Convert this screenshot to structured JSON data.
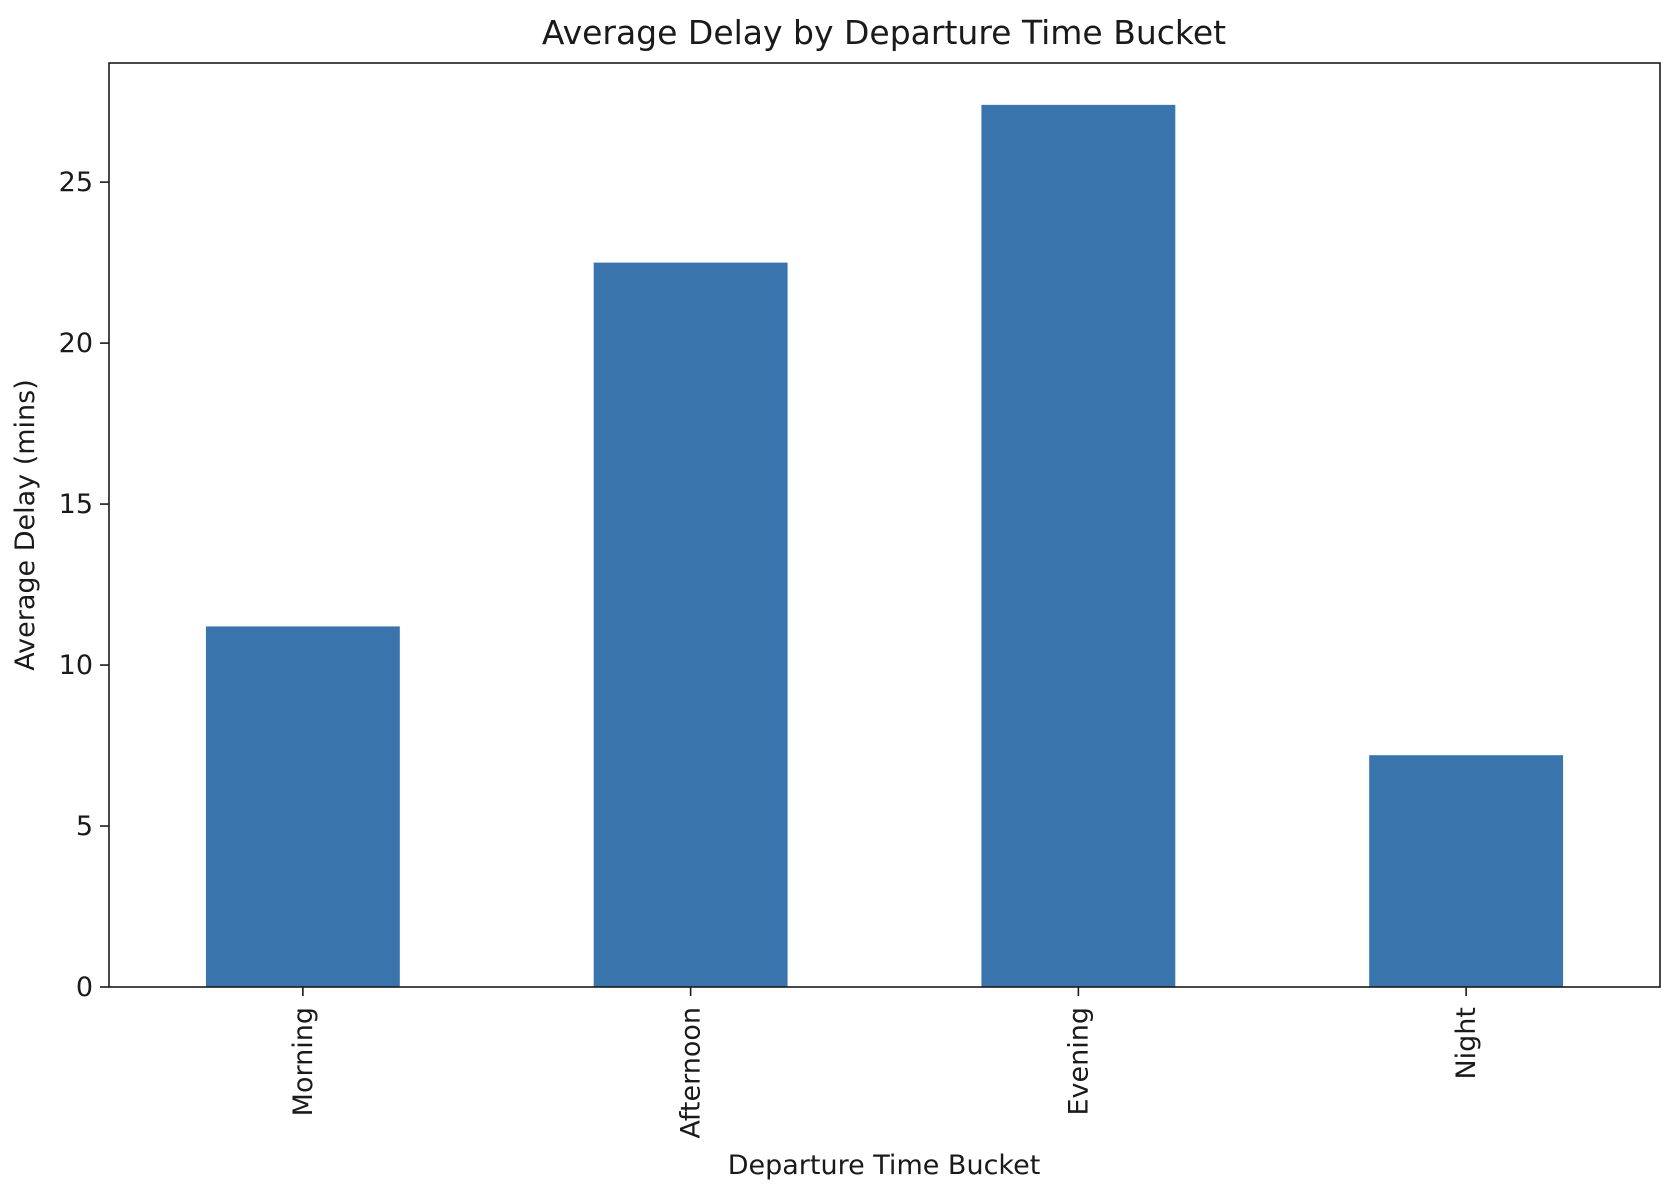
{
  "chart_data": {
    "type": "bar",
    "title": "Average Delay by Departure Time Bucket",
    "xlabel": "Departure Time Bucket",
    "ylabel": "Average Delay (mins)",
    "categories": [
      "Morning",
      "Afternoon",
      "Evening",
      "Night"
    ],
    "values": [
      11.2,
      22.5,
      27.4,
      7.2
    ],
    "ylim": [
      0,
      28.7
    ],
    "yticks": [
      0,
      5,
      10,
      15,
      20,
      25
    ],
    "grid": false,
    "legend": "none",
    "colors": {
      "bar": "#3a74ad"
    }
  }
}
